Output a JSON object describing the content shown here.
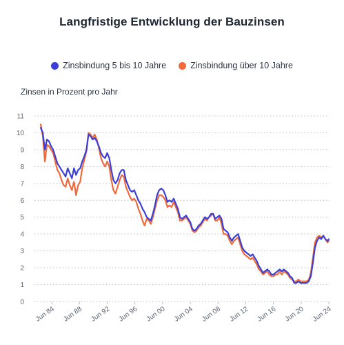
{
  "chart_data": {
    "type": "line",
    "title": "Langfristige Entwicklung der Bauzinsen",
    "ylabel": "Zinsen in Prozent pro Jahr",
    "xlabel": "",
    "ylim": [
      0,
      11
    ],
    "xlim": [
      1982,
      2024.6
    ],
    "y_ticks": [
      "0",
      "1",
      "2",
      "3",
      "4",
      "5",
      "6",
      "7",
      "8",
      "9",
      "10",
      "11"
    ],
    "x_ticks": [
      {
        "label": "Jun 84",
        "value": 1984.5
      },
      {
        "label": "Jun 88",
        "value": 1988.5
      },
      {
        "label": "Jun 92",
        "value": 1992.5
      },
      {
        "label": "Jun 96",
        "value": 1996.5
      },
      {
        "label": "Jun 00",
        "value": 2000.5
      },
      {
        "label": "Jun 04",
        "value": 2004.5
      },
      {
        "label": "Jun 08",
        "value": 2008.5
      },
      {
        "label": "Jun 12",
        "value": 2012.5
      },
      {
        "label": "Jun 16",
        "value": 2016.5
      },
      {
        "label": "Jun 20",
        "value": 2020.5
      },
      {
        "label": "Jun 24",
        "value": 2024.5
      }
    ],
    "grid": "horizontal-dotted",
    "legend_position": "top-center",
    "series": [
      {
        "name": "Zinsbindung 5 bis 10 Jahre",
        "color": "#3b3fd6",
        "x": [
          1982.9,
          1983.2,
          1983.5,
          1983.8,
          1984.1,
          1984.4,
          1984.7,
          1985.0,
          1985.3,
          1985.6,
          1985.9,
          1986.2,
          1986.5,
          1986.8,
          1987.1,
          1987.4,
          1987.7,
          1988.0,
          1988.3,
          1988.6,
          1988.9,
          1989.2,
          1989.5,
          1989.8,
          1990.1,
          1990.4,
          1990.7,
          1991.0,
          1991.3,
          1991.6,
          1991.9,
          1992.2,
          1992.5,
          1992.8,
          1993.1,
          1993.4,
          1993.7,
          1994.0,
          1994.3,
          1994.6,
          1994.9,
          1995.2,
          1995.5,
          1995.8,
          1996.1,
          1996.4,
          1996.7,
          1997.0,
          1997.3,
          1997.6,
          1997.9,
          1998.2,
          1998.5,
          1998.8,
          1999.1,
          1999.4,
          1999.7,
          2000.0,
          2000.3,
          2000.6,
          2000.9,
          2001.2,
          2001.5,
          2001.8,
          2002.1,
          2002.4,
          2002.7,
          2003.0,
          2003.3,
          2003.6,
          2003.9,
          2004.2,
          2004.5,
          2004.8,
          2005.1,
          2005.4,
          2005.7,
          2006.0,
          2006.3,
          2006.6,
          2006.9,
          2007.2,
          2007.5,
          2007.8,
          2008.1,
          2008.4,
          2008.7,
          2009.0,
          2009.3,
          2009.6,
          2009.9,
          2010.2,
          2010.5,
          2010.8,
          2011.1,
          2011.4,
          2011.7,
          2012.0,
          2012.3,
          2012.6,
          2012.9,
          2013.2,
          2013.5,
          2013.8,
          2014.1,
          2014.4,
          2014.7,
          2015.0,
          2015.3,
          2015.6,
          2015.9,
          2016.2,
          2016.5,
          2016.8,
          2017.1,
          2017.4,
          2017.7,
          2018.0,
          2018.3,
          2018.6,
          2018.9,
          2019.2,
          2019.5,
          2019.8,
          2020.1,
          2020.4,
          2020.7,
          2021.0,
          2021.3,
          2021.6,
          2021.9,
          2022.2,
          2022.5,
          2022.8,
          2023.1,
          2023.4,
          2023.7,
          2024.0,
          2024.3,
          2024.5
        ],
        "values": [
          10.3,
          10.0,
          9.0,
          9.6,
          9.5,
          9.2,
          9.0,
          8.6,
          8.2,
          8.0,
          7.8,
          7.6,
          7.4,
          7.9,
          7.6,
          7.3,
          7.9,
          7.5,
          7.8,
          7.9,
          8.3,
          8.6,
          9.0,
          9.9,
          9.8,
          9.6,
          9.7,
          9.5,
          9.2,
          8.8,
          8.6,
          8.5,
          8.8,
          8.5,
          7.8,
          7.2,
          7.0,
          7.2,
          7.6,
          7.8,
          7.8,
          7.2,
          6.9,
          6.6,
          6.5,
          6.6,
          6.3,
          6.0,
          5.8,
          5.5,
          5.3,
          5.0,
          4.9,
          4.8,
          5.2,
          5.7,
          6.3,
          6.6,
          6.7,
          6.6,
          6.3,
          5.9,
          6.0,
          5.9,
          6.1,
          5.8,
          5.5,
          5.0,
          4.9,
          5.0,
          5.1,
          4.9,
          4.7,
          4.3,
          4.2,
          4.3,
          4.5,
          4.6,
          4.8,
          5.0,
          4.9,
          5.0,
          5.2,
          5.2,
          4.9,
          5.0,
          5.1,
          4.9,
          4.3,
          4.2,
          4.1,
          3.8,
          3.6,
          3.8,
          3.9,
          4.0,
          3.6,
          3.2,
          3.0,
          2.9,
          2.8,
          2.7,
          2.8,
          2.6,
          2.4,
          2.1,
          1.9,
          1.7,
          1.8,
          1.9,
          1.8,
          1.6,
          1.6,
          1.7,
          1.8,
          1.9,
          1.8,
          1.9,
          1.8,
          1.7,
          1.5,
          1.4,
          1.1,
          1.1,
          1.2,
          1.1,
          1.1,
          1.1,
          1.1,
          1.2,
          1.5,
          2.3,
          3.2,
          3.6,
          3.8,
          3.7,
          3.9,
          3.7,
          3.6,
          3.7
        ]
      },
      {
        "name": "Zinsbindung über 10 Jahre",
        "color": "#ee6a3c",
        "x": [
          1982.9,
          1983.2,
          1983.5,
          1983.8,
          1984.1,
          1984.4,
          1984.7,
          1985.0,
          1985.3,
          1985.6,
          1985.9,
          1986.2,
          1986.5,
          1986.8,
          1987.1,
          1987.4,
          1987.7,
          1988.0,
          1988.3,
          1988.6,
          1988.9,
          1989.2,
          1989.5,
          1989.8,
          1990.1,
          1990.4,
          1990.7,
          1991.0,
          1991.3,
          1991.6,
          1991.9,
          1992.2,
          1992.5,
          1992.8,
          1993.1,
          1993.4,
          1993.7,
          1994.0,
          1994.3,
          1994.6,
          1994.9,
          1995.2,
          1995.5,
          1995.8,
          1996.1,
          1996.4,
          1996.7,
          1997.0,
          1997.3,
          1997.6,
          1997.9,
          1998.2,
          1998.5,
          1998.8,
          1999.1,
          1999.4,
          1999.7,
          2000.0,
          2000.3,
          2000.6,
          2000.9,
          2001.2,
          2001.5,
          2001.8,
          2002.1,
          2002.4,
          2002.7,
          2003.0,
          2003.3,
          2003.6,
          2003.9,
          2004.2,
          2004.5,
          2004.8,
          2005.1,
          2005.4,
          2005.7,
          2006.0,
          2006.3,
          2006.6,
          2006.9,
          2007.2,
          2007.5,
          2007.8,
          2008.1,
          2008.4,
          2008.7,
          2009.0,
          2009.3,
          2009.6,
          2009.9,
          2010.2,
          2010.5,
          2010.8,
          2011.1,
          2011.4,
          2011.7,
          2012.0,
          2012.3,
          2012.6,
          2012.9,
          2013.2,
          2013.5,
          2013.8,
          2014.1,
          2014.4,
          2014.7,
          2015.0,
          2015.3,
          2015.6,
          2015.9,
          2016.2,
          2016.5,
          2016.8,
          2017.1,
          2017.4,
          2017.7,
          2018.0,
          2018.3,
          2018.6,
          2018.9,
          2019.2,
          2019.5,
          2019.8,
          2020.1,
          2020.4,
          2020.7,
          2021.0,
          2021.3,
          2021.6,
          2021.9,
          2022.2,
          2022.5,
          2022.8,
          2023.1,
          2023.4,
          2023.7,
          2024.0,
          2024.3,
          2024.5
        ],
        "values": [
          10.5,
          9.8,
          8.3,
          9.3,
          9.2,
          9.0,
          8.8,
          8.3,
          7.8,
          7.6,
          7.2,
          6.9,
          6.8,
          7.3,
          6.9,
          6.6,
          7.1,
          6.3,
          6.9,
          7.1,
          7.9,
          8.4,
          8.9,
          10.0,
          9.9,
          9.7,
          9.9,
          9.6,
          9.1,
          8.5,
          8.2,
          8.0,
          8.3,
          8.0,
          7.2,
          6.6,
          6.4,
          6.8,
          7.2,
          7.5,
          7.4,
          6.8,
          6.5,
          6.2,
          6.0,
          6.1,
          5.9,
          5.5,
          5.2,
          4.8,
          4.5,
          4.9,
          4.8,
          4.6,
          5.0,
          5.5,
          6.0,
          6.3,
          6.3,
          6.2,
          6.0,
          5.6,
          5.7,
          5.6,
          5.9,
          5.6,
          5.3,
          4.8,
          4.8,
          4.9,
          5.0,
          4.8,
          4.6,
          4.2,
          4.1,
          4.2,
          4.4,
          4.5,
          4.7,
          4.9,
          4.8,
          5.0,
          5.1,
          5.2,
          4.8,
          4.8,
          5.0,
          4.6,
          4.0,
          4.0,
          3.9,
          3.6,
          3.4,
          3.6,
          3.7,
          3.8,
          3.4,
          3.0,
          2.8,
          2.7,
          2.6,
          2.5,
          2.6,
          2.4,
          2.2,
          1.9,
          1.8,
          1.6,
          1.7,
          1.8,
          1.6,
          1.5,
          1.5,
          1.6,
          1.6,
          1.8,
          1.6,
          1.8,
          1.7,
          1.6,
          1.4,
          1.3,
          1.2,
          1.2,
          1.3,
          1.2,
          1.2,
          1.2,
          1.2,
          1.3,
          1.7,
          2.6,
          3.5,
          3.8,
          3.9,
          3.8,
          3.9,
          3.7,
          3.5,
          3.6
        ]
      }
    ]
  }
}
